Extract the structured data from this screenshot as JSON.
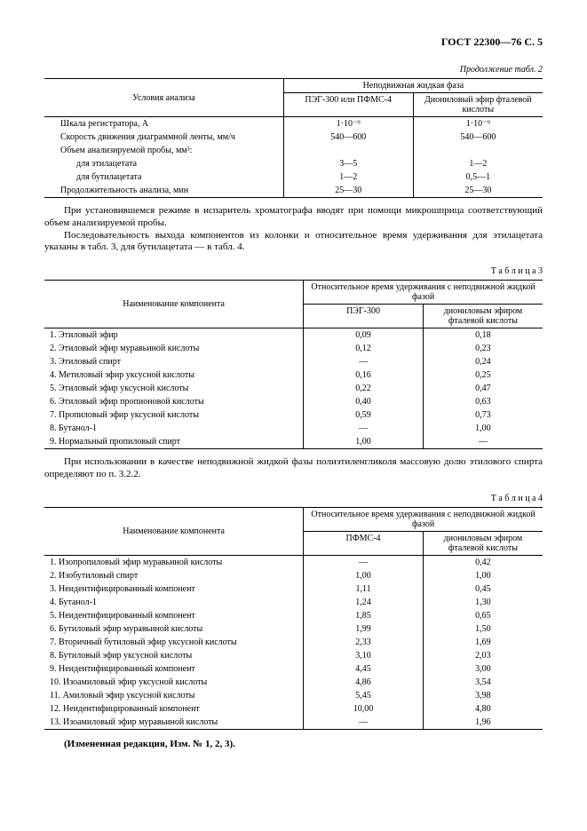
{
  "doc_header": "ГОСТ 22300—76 С. 5",
  "table2": {
    "caption": "Продолжение табл. 2",
    "hdr_conditions": "Условия анализа",
    "hdr_phase": "Неподвижная жидкая фаза",
    "hdr_col_a": "ПЭГ-300 или ПФМС-4",
    "hdr_col_b": "Диониловый эфир фталевой кислоты",
    "rows": [
      {
        "label": "Шкала регистратора, А",
        "sub": "",
        "a": "1·10⁻⁹",
        "b": "1·10⁻⁹"
      },
      {
        "label": "Скорость движения диаграммной ленты, мм/ч",
        "sub": "",
        "a": "540—600",
        "b": "540—600"
      },
      {
        "label": "Объем анализируемой пробы, мм³:",
        "sub": "",
        "a": "",
        "b": ""
      },
      {
        "label": "",
        "sub": "для этилацетата",
        "a": "3—5",
        "b": "1—2"
      },
      {
        "label": "",
        "sub": "для бутилацетата",
        "a": "1—2",
        "b": "0,5—1"
      },
      {
        "label": "Продолжительность анализа, мин",
        "sub": "",
        "a": "25—30",
        "b": "25—30"
      }
    ]
  },
  "para1": "При установившемся режиме в испаритель хроматографа вводят при помощи микрошприца соответствующий объем анализируемой пробы.",
  "para2": "Последовательность выхода компонентов из колонки и относительное время удерживания для этилацетата указаны в табл. 3, для бутилацетата — в табл. 4.",
  "table3": {
    "caption": "Т а б л и ц а 3",
    "hdr_name": "Наименование компонента",
    "hdr_phase": "Относительное время удерживания с неподвижной жидкой фазой",
    "hdr_col_a": "ПЭГ-300",
    "hdr_col_b": "диониловым эфиром фталевой кислоты",
    "rows": [
      {
        "n": "1.",
        "name": "Этиловый эфир",
        "a": "0,09",
        "b": "0,18"
      },
      {
        "n": "2.",
        "name": "Этиловый эфир муравьиной кислоты",
        "a": "0,12",
        "b": "0,23"
      },
      {
        "n": "3.",
        "name": "Этиловый спирт",
        "a": "—",
        "b": "0,24"
      },
      {
        "n": "4.",
        "name": "Метиловый эфир уксусной кислоты",
        "a": "0,16",
        "b": "0,25"
      },
      {
        "n": "5.",
        "name": "Этиловый эфир уксусной кислоты",
        "a": "0,22",
        "b": "0,47"
      },
      {
        "n": "6.",
        "name": "Этиловый эфир пропионовой кислоты",
        "a": "0,40",
        "b": "0,63"
      },
      {
        "n": "7.",
        "name": "Пропиловый эфир уксусной кислоты",
        "a": "0,59",
        "b": "0,73"
      },
      {
        "n": "8.",
        "name": "Бутанол-1",
        "a": "—",
        "b": "1,00"
      },
      {
        "n": "9.",
        "name": "Нормальный пропиловый спирт",
        "a": "1,00",
        "b": "—"
      }
    ]
  },
  "para3": "При использовании в качестве неподвижной жидкой фазы полиэтиленгликоля массовую долю этилового спирта определяют по п. 3.2.2.",
  "table4": {
    "caption": "Т а б л и ц а 4",
    "hdr_name": "Наименование компонента",
    "hdr_phase": "Относительное время удерживания с неподвижной жидкой фазой",
    "hdr_col_a": "ПФМС-4",
    "hdr_col_b": "диониловым эфиром фталевой кислоты",
    "rows": [
      {
        "n": "1.",
        "name": "Изопропиловый эфир муравьиной кислоты",
        "a": "—",
        "b": "0,42"
      },
      {
        "n": "2.",
        "name": "Изобутиловый спирт",
        "a": "1,00",
        "b": "1,00"
      },
      {
        "n": "3.",
        "name": "Неидентифицированный компонент",
        "a": "1,11",
        "b": "0,45"
      },
      {
        "n": "4.",
        "name": "Бутанол-1",
        "a": "1,24",
        "b": "1,30"
      },
      {
        "n": "5.",
        "name": "Неидентифицированный компонент",
        "a": "1,85",
        "b": "0,65"
      },
      {
        "n": "6.",
        "name": "Бутиловый эфир муравьиной кислоты",
        "a": "1,99",
        "b": "1,50"
      },
      {
        "n": "7.",
        "name": "Вторичный бутиловый эфир уксусной кислоты",
        "a": "2,33",
        "b": "1,69"
      },
      {
        "n": "8.",
        "name": "Бутиловый эфир уксусной кислоты",
        "a": "3,10",
        "b": "2,03"
      },
      {
        "n": "9.",
        "name": "Неидентифицированный компонент",
        "a": "4,45",
        "b": "3,00"
      },
      {
        "n": "10.",
        "name": "Изоамиловый эфир уксусной кислоты",
        "a": "4,86",
        "b": "3,54"
      },
      {
        "n": "11.",
        "name": "Амиловый эфир уксусной кислоты",
        "a": "5,45",
        "b": "3,98"
      },
      {
        "n": "12.",
        "name": "Неидентифицированный компонент",
        "a": "10,00",
        "b": "4,80"
      },
      {
        "n": "13.",
        "name": "Изоамиловый эфир муравьиной кислоты",
        "a": "—",
        "b": "1,96"
      }
    ]
  },
  "footer_note": "(Измененная редакция, Изм. № 1, 2, 3)."
}
